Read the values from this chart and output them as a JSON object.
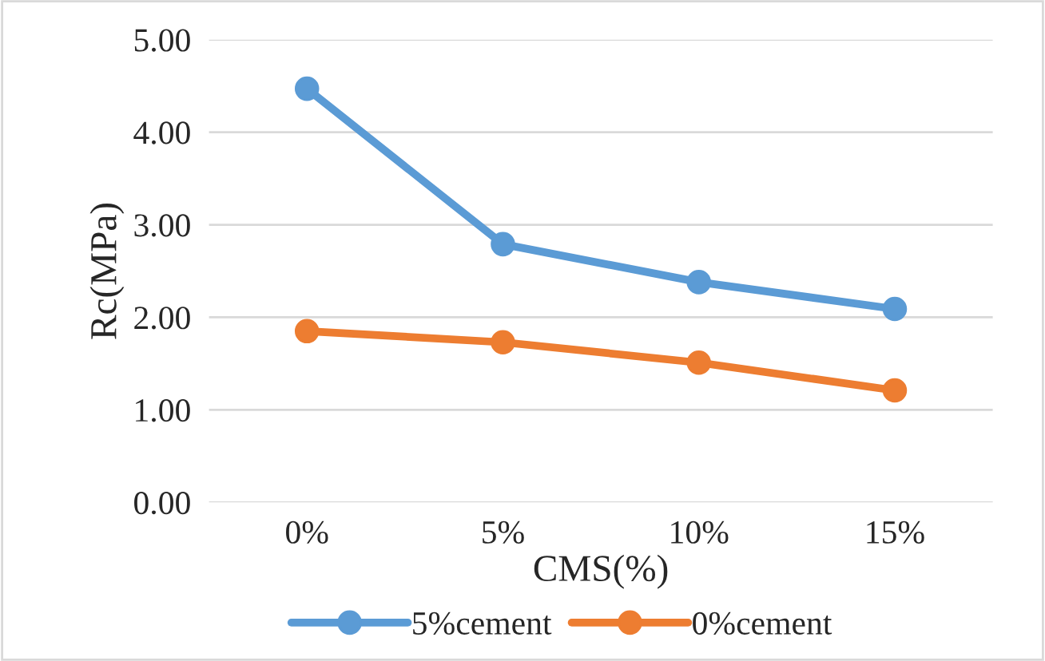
{
  "chart_data": {
    "type": "line",
    "xlabel": "CMS(%)",
    "ylabel": "Rc(MPa)",
    "categories": [
      "0%",
      "5%",
      "10%",
      "15%"
    ],
    "series": [
      {
        "name": "5%cement",
        "color": "#5b9bd5",
        "values": [
          4.47,
          2.79,
          2.38,
          2.09
        ]
      },
      {
        "name": "0%cement",
        "color": "#ed7d31",
        "values": [
          1.85,
          1.73,
          1.51,
          1.21
        ]
      }
    ],
    "ylim": [
      0,
      5
    ],
    "yticks": [
      {
        "value": 0,
        "label": "0.00"
      },
      {
        "value": 1,
        "label": "1.00"
      },
      {
        "value": 2,
        "label": "2.00"
      },
      {
        "value": 3,
        "label": "3.00"
      },
      {
        "value": 4,
        "label": "4.00"
      },
      {
        "value": 5,
        "label": "5.00"
      }
    ],
    "grid": "y",
    "legend": "bottom",
    "marker": "circle",
    "line_style": "solid"
  }
}
